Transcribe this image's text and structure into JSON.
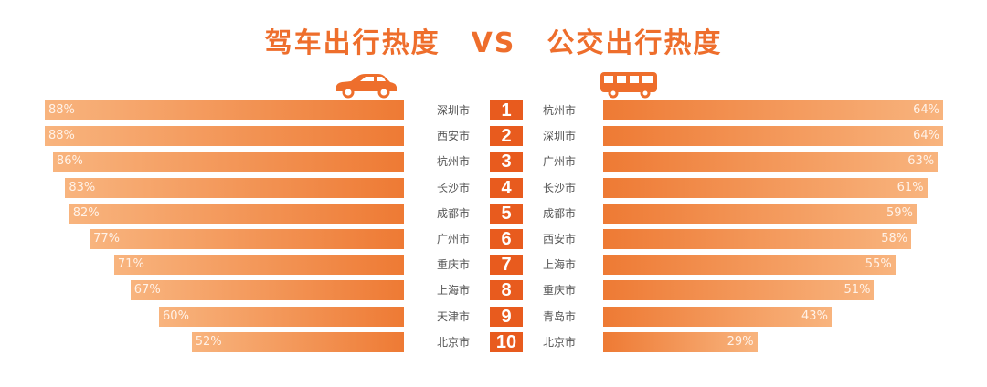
{
  "title": {
    "left": "驾车出行热度",
    "vs": "VS",
    "right": "公交出行热度"
  },
  "icons": {
    "left": "car-icon",
    "right": "bus-icon"
  },
  "colors": {
    "accent": "#ee6e2c",
    "rank_bg": "#e85b1e",
    "bar_dark": "#ee7a34",
    "bar_light": "#f8b47e"
  },
  "chart_data": {
    "type": "bar",
    "ranks": [
      "1",
      "2",
      "3",
      "4",
      "5",
      "6",
      "7",
      "8",
      "9",
      "10"
    ],
    "series": [
      {
        "name": "驾车出行热度",
        "categories": [
          "深圳市",
          "西安市",
          "杭州市",
          "长沙市",
          "成都市",
          "广州市",
          "重庆市",
          "上海市",
          "天津市",
          "北京市"
        ],
        "values": [
          88,
          88,
          86,
          83,
          82,
          77,
          71,
          67,
          60,
          52
        ],
        "labels": [
          "88%",
          "88%",
          "86%",
          "83%",
          "82%",
          "77%",
          "71%",
          "67%",
          "60%",
          "52%"
        ]
      },
      {
        "name": "公交出行热度",
        "categories": [
          "杭州市",
          "深圳市",
          "广州市",
          "长沙市",
          "成都市",
          "西安市",
          "上海市",
          "重庆市",
          "青岛市",
          "北京市"
        ],
        "values": [
          64,
          64,
          63,
          61,
          59,
          58,
          55,
          51,
          43,
          29
        ],
        "labels": [
          "64%",
          "64%",
          "63%",
          "61%",
          "59%",
          "58%",
          "55%",
          "51%",
          "43%",
          "29%"
        ]
      }
    ]
  }
}
